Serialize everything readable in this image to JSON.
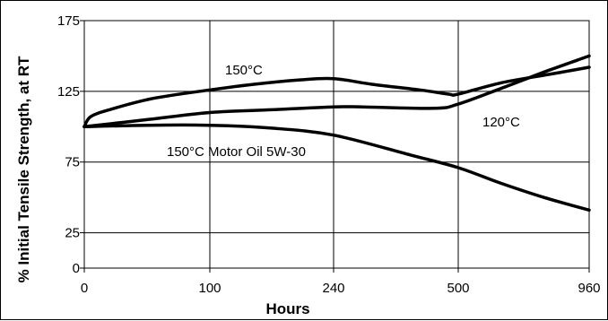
{
  "chart_data": {
    "type": "line",
    "xlabel": "Hours",
    "ylabel": "% Initial Tensile Strength, at RT",
    "x_ticks": [
      "0",
      "100",
      "240",
      "500",
      "960"
    ],
    "x_scale": "categorical-gridline (non-linear spacing)",
    "y_ticks": [
      0,
      25,
      75,
      125,
      175
    ],
    "ylim": [
      0,
      175
    ],
    "grid": true,
    "series": [
      {
        "name": "150°C",
        "points": [
          {
            "x": 0,
            "y": 100
          },
          {
            "x": 5,
            "y": 107
          },
          {
            "x": 20,
            "y": 112
          },
          {
            "x": 55,
            "y": 120
          },
          {
            "x": 100,
            "y": 126
          },
          {
            "x": 150,
            "y": 130
          },
          {
            "x": 200,
            "y": 133
          },
          {
            "x": 240,
            "y": 134
          },
          {
            "x": 320,
            "y": 130
          },
          {
            "x": 420,
            "y": 126
          },
          {
            "x": 480,
            "y": 123
          },
          {
            "x": 500,
            "y": 123
          },
          {
            "x": 650,
            "y": 131
          },
          {
            "x": 820,
            "y": 137
          },
          {
            "x": 960,
            "y": 142
          }
        ]
      },
      {
        "name": "120°C",
        "points": [
          {
            "x": 0,
            "y": 100
          },
          {
            "x": 50,
            "y": 105
          },
          {
            "x": 100,
            "y": 110
          },
          {
            "x": 170,
            "y": 112
          },
          {
            "x": 240,
            "y": 114
          },
          {
            "x": 300,
            "y": 114
          },
          {
            "x": 450,
            "y": 113
          },
          {
            "x": 500,
            "y": 116
          },
          {
            "x": 650,
            "y": 127
          },
          {
            "x": 820,
            "y": 140
          },
          {
            "x": 960,
            "y": 150
          }
        ]
      },
      {
        "name": "150°C Motor Oil 5W-30",
        "points": [
          {
            "x": 0,
            "y": 100
          },
          {
            "x": 50,
            "y": 101
          },
          {
            "x": 100,
            "y": 101
          },
          {
            "x": 170,
            "y": 99
          },
          {
            "x": 240,
            "y": 94
          },
          {
            "x": 400,
            "y": 80
          },
          {
            "x": 500,
            "y": 71
          },
          {
            "x": 650,
            "y": 60
          },
          {
            "x": 800,
            "y": 50
          },
          {
            "x": 960,
            "y": 41
          }
        ]
      }
    ],
    "annotations": [
      "150°C",
      "120°C",
      "150°C Motor Oil 5W-30"
    ]
  }
}
